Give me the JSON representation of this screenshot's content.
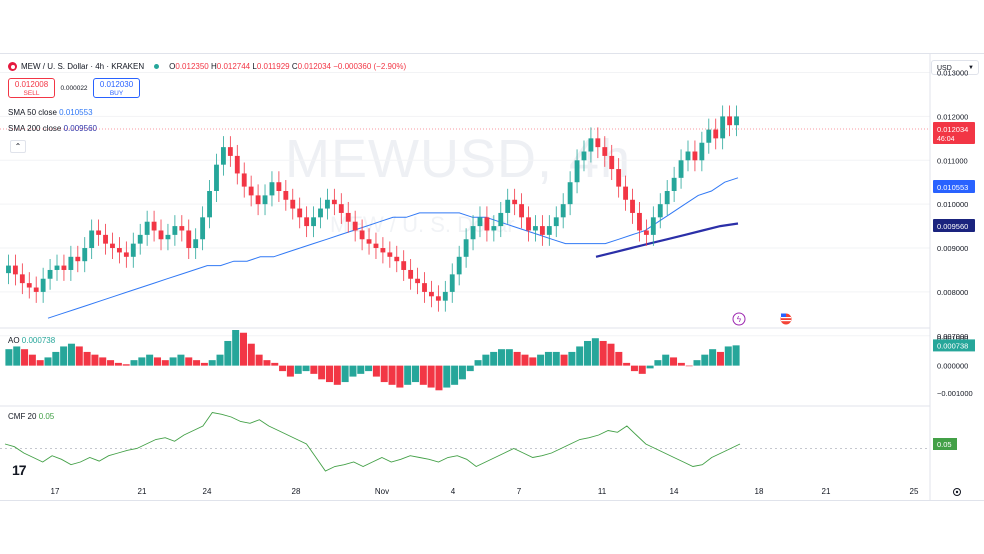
{
  "header": {
    "symbol": "MEW / U. S. Dollar · 4h · KRAKEN",
    "o_label": "O",
    "o_value": "0.012350",
    "h_label": "H",
    "h_value": "0.012744",
    "l_label": "L",
    "l_value": "0.011929",
    "c_label": "C",
    "c_value": "0.012034",
    "change": "−0.000360 (−2.90%)"
  },
  "trade": {
    "sell_price": "0.012008",
    "sell_label": "SELL",
    "spread": "0.000022",
    "buy_price": "0.012030",
    "buy_label": "BUY"
  },
  "currency_selector": "USD",
  "watermark": {
    "symbol": "MEWUSD, 4h",
    "name": "MEW / U. S. Dollar"
  },
  "colors": {
    "up": "#26a69a",
    "down": "#f23645",
    "sma50": "#3179f5",
    "sma200": "#2b2fa8",
    "cmf": "#43a047"
  },
  "chart_data": [
    {
      "type": "candlestick",
      "title": "MEW / U. S. Dollar · 4h · KRAKEN",
      "ylim": [
        0.0072,
        0.0134
      ],
      "y_ticks": [
        "0.013000",
        "0.012000",
        "0.011000",
        "0.010000",
        "0.009000",
        "0.008000",
        "0.007000"
      ],
      "x_ticks": [
        "17",
        "21",
        "24",
        "28",
        "Nov",
        "4",
        "7",
        "11",
        "14",
        "18",
        "21",
        "25"
      ],
      "last_price": "0.012034",
      "countdown": "46:04",
      "closes": [
        0.0086,
        0.0084,
        0.0082,
        0.0081,
        0.008,
        0.0083,
        0.0085,
        0.0086,
        0.0085,
        0.0088,
        0.0087,
        0.009,
        0.0094,
        0.0093,
        0.0091,
        0.009,
        0.0089,
        0.0088,
        0.0091,
        0.0093,
        0.0096,
        0.0094,
        0.0092,
        0.0093,
        0.0095,
        0.0094,
        0.009,
        0.0092,
        0.0097,
        0.0103,
        0.0109,
        0.0113,
        0.0111,
        0.0107,
        0.0104,
        0.0102,
        0.01,
        0.0102,
        0.0105,
        0.0103,
        0.0101,
        0.0099,
        0.0097,
        0.0095,
        0.0097,
        0.0099,
        0.0101,
        0.01,
        0.0098,
        0.0096,
        0.0094,
        0.0092,
        0.0091,
        0.009,
        0.0089,
        0.0088,
        0.0087,
        0.0085,
        0.0083,
        0.0082,
        0.008,
        0.0079,
        0.0078,
        0.008,
        0.0084,
        0.0088,
        0.0092,
        0.0095,
        0.0097,
        0.0094,
        0.0095,
        0.0098,
        0.0101,
        0.01,
        0.0097,
        0.0094,
        0.0095,
        0.0093,
        0.0095,
        0.0097,
        0.01,
        0.0105,
        0.011,
        0.0112,
        0.0115,
        0.0113,
        0.0111,
        0.0108,
        0.0104,
        0.0101,
        0.0098,
        0.0094,
        0.0093,
        0.0097,
        0.01,
        0.0103,
        0.0106,
        0.011,
        0.0112,
        0.011,
        0.0114,
        0.0117,
        0.0115,
        0.012,
        0.0118,
        0.012
      ],
      "sma50": {
        "name": "SMA 50 close",
        "value": "0.010553",
        "values": [
          0.0074,
          0.0075,
          0.0076,
          0.0077,
          0.0078,
          0.0079,
          0.008,
          0.0081,
          0.0082,
          0.0083,
          0.0084,
          0.0085,
          0.0086,
          0.0086,
          0.0087,
          0.0087,
          0.0088,
          0.0088,
          0.0089,
          0.009,
          0.0091,
          0.0092,
          0.0093,
          0.0094,
          0.0095,
          0.0096,
          0.0097,
          0.0097,
          0.0098,
          0.0098,
          0.0098,
          0.0098,
          0.0097,
          0.0097,
          0.0096,
          0.0095,
          0.0094,
          0.0093,
          0.0092,
          0.0091,
          0.0091,
          0.0091,
          0.0091,
          0.0092,
          0.0093,
          0.0094,
          0.0096,
          0.0098,
          0.01,
          0.0102,
          0.0103,
          0.0105,
          0.0106
        ]
      },
      "sma200": {
        "name": "SMA 200 close",
        "value": "0.009560",
        "values": [
          0.0088,
          0.0089,
          0.009,
          0.0091,
          0.0092,
          0.0093,
          0.0094,
          0.0095,
          0.00956
        ]
      }
    },
    {
      "type": "bar",
      "title": "AO",
      "value": "0.000738",
      "ylim": [
        -0.0014,
        0.0013
      ],
      "y_ticks": [
        "0.001000",
        "0.000000",
        "−0.001000"
      ],
      "values": [
        0.0006,
        0.0007,
        0.0006,
        0.0004,
        0.0002,
        0.0003,
        0.0005,
        0.0007,
        0.0008,
        0.0007,
        0.0005,
        0.0004,
        0.0003,
        0.0002,
        0.0001,
        5e-05,
        0.0002,
        0.0003,
        0.0004,
        0.0003,
        0.0002,
        0.0003,
        0.0004,
        0.0003,
        0.0002,
        0.0001,
        0.0002,
        0.0004,
        0.0009,
        0.0013,
        0.0012,
        0.0008,
        0.0004,
        0.0002,
        0.0001,
        -0.0002,
        -0.0004,
        -0.0003,
        -0.0002,
        -0.0003,
        -0.0005,
        -0.0006,
        -0.0007,
        -0.0006,
        -0.0004,
        -0.0003,
        -0.0002,
        -0.0004,
        -0.0006,
        -0.0007,
        -0.0008,
        -0.0007,
        -0.0006,
        -0.0007,
        -0.0008,
        -0.0009,
        -0.0008,
        -0.0007,
        -0.0005,
        -0.0002,
        0.0002,
        0.0004,
        0.0005,
        0.0006,
        0.0006,
        0.0005,
        0.0004,
        0.0003,
        0.0004,
        0.0005,
        0.0005,
        0.0004,
        0.0005,
        0.0007,
        0.0009,
        0.001,
        0.0009,
        0.0008,
        0.0005,
        0.0001,
        -0.0002,
        -0.0003,
        -0.0001,
        0.0002,
        0.0004,
        0.0003,
        0.0001,
        0.0,
        0.0002,
        0.0004,
        0.0006,
        0.0005,
        0.0007,
        0.00074
      ]
    },
    {
      "type": "line",
      "title": "CMF 20",
      "value": "0.05",
      "ylim": [
        -0.35,
        0.45
      ],
      "values": [
        0.05,
        0.02,
        -0.05,
        -0.1,
        -0.15,
        -0.08,
        -0.12,
        -0.18,
        -0.15,
        -0.1,
        -0.14,
        -0.08,
        -0.05,
        -0.02,
        0.0,
        0.05,
        0.1,
        0.12,
        0.08,
        0.15,
        0.2,
        0.25,
        0.4,
        0.38,
        0.35,
        0.3,
        0.28,
        0.32,
        0.25,
        0.2,
        0.15,
        0.1,
        0.05,
        -0.1,
        -0.25,
        -0.2,
        -0.18,
        -0.15,
        -0.2,
        -0.15,
        -0.1,
        -0.15,
        -0.12,
        -0.08,
        -0.1,
        -0.12,
        -0.15,
        -0.1,
        -0.08,
        -0.12,
        -0.2,
        -0.15,
        -0.1,
        -0.05,
        0.0,
        -0.05,
        -0.1,
        -0.08,
        -0.05,
        0.0,
        0.05,
        0.1,
        0.12,
        0.15,
        0.2,
        0.18,
        0.25,
        0.15,
        0.05,
        0.0,
        -0.05,
        -0.1,
        -0.15,
        -0.2,
        -0.18,
        -0.1,
        -0.05,
        0.0,
        0.05
      ]
    }
  ]
}
